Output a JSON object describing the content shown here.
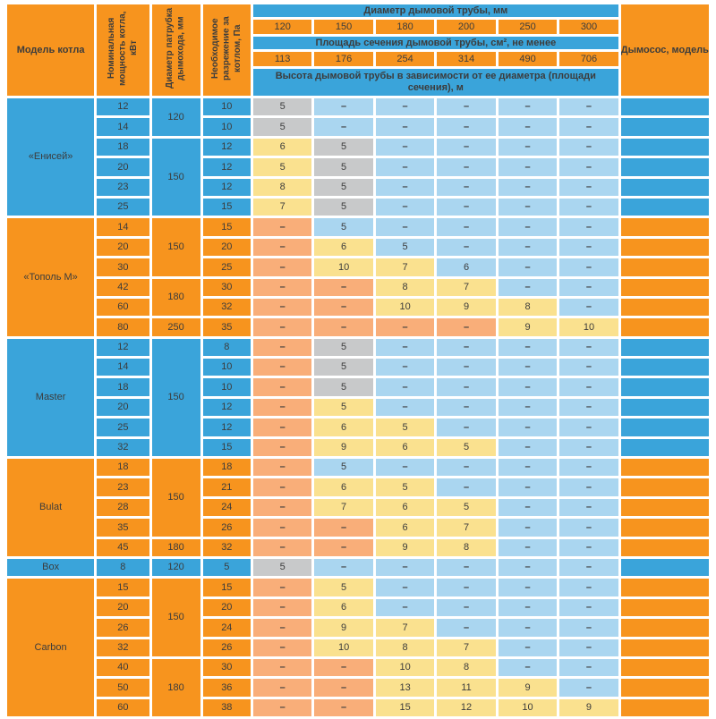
{
  "colors": {
    "blue": "#3aa4da",
    "orange": "#f7941e",
    "light_blue": "#aad6f0",
    "salmon": "#f9ae79",
    "yellow": "#fae18f",
    "gray": "#c8c9ca",
    "text": "#3c3c3c"
  },
  "header": {
    "model_col": "Модель котла",
    "power_col": "Номинальная мощность котла, кВт",
    "pipe_col": "Диаметр патрубка дымохода, мм",
    "vacuum_col": "Необходимое разрежение за котлом, Па",
    "diameter_title": "Диаметр дымовой трубы, мм",
    "diameters": [
      "120",
      "150",
      "180",
      "200",
      "250",
      "300"
    ],
    "area_title": "Площадь сечения дымовой трубы, см², не менее",
    "areas": [
      "113",
      "176",
      "254",
      "314",
      "490",
      "706"
    ],
    "height_title": "Высота дымовой трубы в зависимости от ее диаметра (площади сечения), м",
    "exhauster_col": "Дымосос, модель"
  },
  "dash": "–",
  "sections": [
    {
      "model": "«Енисей»",
      "theme": "blue",
      "rows": [
        {
          "power": "12",
          "pipe": {
            "label": "120",
            "span": 2
          },
          "vacuum": "10",
          "heights": [
            [
              "5",
              "gray"
            ],
            [
              "–",
              "lblue"
            ],
            [
              "–",
              "lblue"
            ],
            [
              "–",
              "lblue"
            ],
            [
              "–",
              "lblue"
            ],
            [
              "–",
              "lblue"
            ]
          ]
        },
        {
          "power": "14",
          "vacuum": "10",
          "heights": [
            [
              "5",
              "gray"
            ],
            [
              "–",
              "lblue"
            ],
            [
              "–",
              "lblue"
            ],
            [
              "–",
              "lblue"
            ],
            [
              "–",
              "lblue"
            ],
            [
              "–",
              "lblue"
            ]
          ]
        },
        {
          "power": "18",
          "pipe": {
            "label": "150",
            "span": 4
          },
          "vacuum": "12",
          "heights": [
            [
              "6",
              "yellow"
            ],
            [
              "5",
              "gray"
            ],
            [
              "–",
              "lblue"
            ],
            [
              "–",
              "lblue"
            ],
            [
              "–",
              "lblue"
            ],
            [
              "–",
              "lblue"
            ]
          ]
        },
        {
          "power": "20",
          "vacuum": "12",
          "heights": [
            [
              "5",
              "yellow"
            ],
            [
              "5",
              "gray"
            ],
            [
              "–",
              "lblue"
            ],
            [
              "–",
              "lblue"
            ],
            [
              "–",
              "lblue"
            ],
            [
              "–",
              "lblue"
            ]
          ]
        },
        {
          "power": "23",
          "vacuum": "12",
          "heights": [
            [
              "8",
              "yellow"
            ],
            [
              "5",
              "gray"
            ],
            [
              "–",
              "lblue"
            ],
            [
              "–",
              "lblue"
            ],
            [
              "–",
              "lblue"
            ],
            [
              "–",
              "lblue"
            ]
          ]
        },
        {
          "power": "25",
          "vacuum": "15",
          "heights": [
            [
              "7",
              "yellow"
            ],
            [
              "5",
              "gray"
            ],
            [
              "–",
              "lblue"
            ],
            [
              "–",
              "lblue"
            ],
            [
              "–",
              "lblue"
            ],
            [
              "–",
              "lblue"
            ]
          ]
        }
      ]
    },
    {
      "model": "«Тополь М»",
      "theme": "orange",
      "rows": [
        {
          "power": "14",
          "pipe": {
            "label": "150",
            "span": 3
          },
          "vacuum": "15",
          "heights": [
            [
              "–",
              "salmon"
            ],
            [
              "5",
              "lblue"
            ],
            [
              "–",
              "lblue"
            ],
            [
              "–",
              "lblue"
            ],
            [
              "–",
              "lblue"
            ],
            [
              "–",
              "lblue"
            ]
          ]
        },
        {
          "power": "20",
          "vacuum": "20",
          "heights": [
            [
              "–",
              "salmon"
            ],
            [
              "6",
              "yellow"
            ],
            [
              "5",
              "lblue"
            ],
            [
              "–",
              "lblue"
            ],
            [
              "–",
              "lblue"
            ],
            [
              "–",
              "lblue"
            ]
          ]
        },
        {
          "power": "30",
          "vacuum": "25",
          "heights": [
            [
              "–",
              "salmon"
            ],
            [
              "10",
              "yellow"
            ],
            [
              "7",
              "yellow"
            ],
            [
              "6",
              "lblue"
            ],
            [
              "–",
              "lblue"
            ],
            [
              "–",
              "lblue"
            ]
          ]
        },
        {
          "power": "42",
          "pipe": {
            "label": "180",
            "span": 2
          },
          "vacuum": "30",
          "heights": [
            [
              "–",
              "salmon"
            ],
            [
              "–",
              "salmon"
            ],
            [
              "8",
              "yellow"
            ],
            [
              "7",
              "yellow"
            ],
            [
              "–",
              "lblue"
            ],
            [
              "–",
              "lblue"
            ]
          ]
        },
        {
          "power": "60",
          "vacuum": "32",
          "heights": [
            [
              "–",
              "salmon"
            ],
            [
              "–",
              "salmon"
            ],
            [
              "10",
              "yellow"
            ],
            [
              "9",
              "yellow"
            ],
            [
              "8",
              "yellow"
            ],
            [
              "–",
              "lblue"
            ]
          ]
        },
        {
          "power": "80",
          "pipe": {
            "label": "250",
            "span": 1
          },
          "vacuum": "35",
          "heights": [
            [
              "–",
              "salmon"
            ],
            [
              "–",
              "salmon"
            ],
            [
              "–",
              "salmon"
            ],
            [
              "–",
              "salmon"
            ],
            [
              "9",
              "yellow"
            ],
            [
              "10",
              "yellow"
            ]
          ]
        }
      ]
    },
    {
      "model": "Master",
      "theme": "blue",
      "rows": [
        {
          "power": "12",
          "pipe": {
            "label": "150",
            "span": 6
          },
          "vacuum": "8",
          "heights": [
            [
              "–",
              "salmon"
            ],
            [
              "5",
              "gray"
            ],
            [
              "–",
              "lblue"
            ],
            [
              "–",
              "lblue"
            ],
            [
              "–",
              "lblue"
            ],
            [
              "–",
              "lblue"
            ]
          ]
        },
        {
          "power": "14",
          "vacuum": "10",
          "heights": [
            [
              "–",
              "salmon"
            ],
            [
              "5",
              "gray"
            ],
            [
              "–",
              "lblue"
            ],
            [
              "–",
              "lblue"
            ],
            [
              "–",
              "lblue"
            ],
            [
              "–",
              "lblue"
            ]
          ]
        },
        {
          "power": "18",
          "vacuum": "10",
          "heights": [
            [
              "–",
              "salmon"
            ],
            [
              "5",
              "gray"
            ],
            [
              "–",
              "lblue"
            ],
            [
              "–",
              "lblue"
            ],
            [
              "–",
              "lblue"
            ],
            [
              "–",
              "lblue"
            ]
          ]
        },
        {
          "power": "20",
          "vacuum": "12",
          "heights": [
            [
              "–",
              "salmon"
            ],
            [
              "5",
              "yellow"
            ],
            [
              "–",
              "lblue"
            ],
            [
              "–",
              "lblue"
            ],
            [
              "–",
              "lblue"
            ],
            [
              "–",
              "lblue"
            ]
          ]
        },
        {
          "power": "25",
          "vacuum": "12",
          "heights": [
            [
              "–",
              "salmon"
            ],
            [
              "6",
              "yellow"
            ],
            [
              "5",
              "yellow"
            ],
            [
              "–",
              "lblue"
            ],
            [
              "–",
              "lblue"
            ],
            [
              "–",
              "lblue"
            ]
          ]
        },
        {
          "power": "32",
          "vacuum": "15",
          "heights": [
            [
              "–",
              "salmon"
            ],
            [
              "9",
              "yellow"
            ],
            [
              "6",
              "yellow"
            ],
            [
              "5",
              "yellow"
            ],
            [
              "–",
              "lblue"
            ],
            [
              "–",
              "lblue"
            ]
          ]
        }
      ]
    },
    {
      "model": "Bulat",
      "theme": "orange",
      "rows": [
        {
          "power": "18",
          "pipe": {
            "label": "150",
            "span": 4
          },
          "vacuum": "18",
          "heights": [
            [
              "–",
              "salmon"
            ],
            [
              "5",
              "lblue"
            ],
            [
              "–",
              "lblue"
            ],
            [
              "–",
              "lblue"
            ],
            [
              "–",
              "lblue"
            ],
            [
              "–",
              "lblue"
            ]
          ]
        },
        {
          "power": "23",
          "vacuum": "21",
          "heights": [
            [
              "–",
              "salmon"
            ],
            [
              "6",
              "yellow"
            ],
            [
              "5",
              "yellow"
            ],
            [
              "–",
              "lblue"
            ],
            [
              "–",
              "lblue"
            ],
            [
              "–",
              "lblue"
            ]
          ]
        },
        {
          "power": "28",
          "vacuum": "24",
          "heights": [
            [
              "–",
              "salmon"
            ],
            [
              "7",
              "yellow"
            ],
            [
              "6",
              "yellow"
            ],
            [
              "5",
              "yellow"
            ],
            [
              "–",
              "lblue"
            ],
            [
              "–",
              "lblue"
            ]
          ]
        },
        {
          "power": "35",
          "vacuum": "26",
          "heights": [
            [
              "–",
              "salmon"
            ],
            [
              "–",
              "salmon"
            ],
            [
              "6",
              "yellow"
            ],
            [
              "7",
              "yellow"
            ],
            [
              "–",
              "lblue"
            ],
            [
              "–",
              "lblue"
            ]
          ]
        },
        {
          "power": "45",
          "pipe": {
            "label": "180",
            "span": 1
          },
          "vacuum": "32",
          "heights": [
            [
              "–",
              "salmon"
            ],
            [
              "–",
              "salmon"
            ],
            [
              "9",
              "yellow"
            ],
            [
              "8",
              "yellow"
            ],
            [
              "–",
              "lblue"
            ],
            [
              "–",
              "lblue"
            ]
          ]
        }
      ]
    },
    {
      "model": "Box",
      "theme": "blue",
      "rows": [
        {
          "power": "8",
          "pipe": {
            "label": "120",
            "span": 1
          },
          "vacuum": "5",
          "heights": [
            [
              "5",
              "gray"
            ],
            [
              "–",
              "lblue"
            ],
            [
              "–",
              "lblue"
            ],
            [
              "–",
              "lblue"
            ],
            [
              "–",
              "lblue"
            ],
            [
              "–",
              "lblue"
            ]
          ]
        }
      ]
    },
    {
      "model": "Carbon",
      "theme": "orange",
      "rows": [
        {
          "power": "15",
          "pipe": {
            "label": "150",
            "span": 4
          },
          "vacuum": "15",
          "heights": [
            [
              "–",
              "salmon"
            ],
            [
              "5",
              "yellow"
            ],
            [
              "–",
              "lblue"
            ],
            [
              "–",
              "lblue"
            ],
            [
              "–",
              "lblue"
            ],
            [
              "–",
              "lblue"
            ]
          ]
        },
        {
          "power": "20",
          "vacuum": "20",
          "heights": [
            [
              "–",
              "salmon"
            ],
            [
              "6",
              "yellow"
            ],
            [
              "–",
              "lblue"
            ],
            [
              "–",
              "lblue"
            ],
            [
              "–",
              "lblue"
            ],
            [
              "–",
              "lblue"
            ]
          ]
        },
        {
          "power": "26",
          "vacuum": "24",
          "heights": [
            [
              "–",
              "salmon"
            ],
            [
              "9",
              "yellow"
            ],
            [
              "7",
              "yellow"
            ],
            [
              "–",
              "lblue"
            ],
            [
              "–",
              "lblue"
            ],
            [
              "–",
              "lblue"
            ]
          ]
        },
        {
          "power": "32",
          "vacuum": "26",
          "heights": [
            [
              "–",
              "salmon"
            ],
            [
              "10",
              "yellow"
            ],
            [
              "8",
              "yellow"
            ],
            [
              "7",
              "yellow"
            ],
            [
              "–",
              "lblue"
            ],
            [
              "–",
              "lblue"
            ]
          ]
        },
        {
          "power": "40",
          "pipe": {
            "label": "180",
            "span": 3
          },
          "vacuum": "30",
          "heights": [
            [
              "–",
              "salmon"
            ],
            [
              "–",
              "salmon"
            ],
            [
              "10",
              "yellow"
            ],
            [
              "8",
              "yellow"
            ],
            [
              "–",
              "lblue"
            ],
            [
              "–",
              "lblue"
            ]
          ]
        },
        {
          "power": "50",
          "vacuum": "36",
          "heights": [
            [
              "–",
              "salmon"
            ],
            [
              "–",
              "salmon"
            ],
            [
              "13",
              "yellow"
            ],
            [
              "11",
              "yellow"
            ],
            [
              "9",
              "yellow"
            ],
            [
              "–",
              "lblue"
            ]
          ]
        },
        {
          "power": "60",
          "vacuum": "38",
          "heights": [
            [
              "–",
              "salmon"
            ],
            [
              "–",
              "salmon"
            ],
            [
              "15",
              "yellow"
            ],
            [
              "12",
              "yellow"
            ],
            [
              "10",
              "yellow"
            ],
            [
              "9",
              "yellow"
            ]
          ]
        }
      ]
    }
  ]
}
